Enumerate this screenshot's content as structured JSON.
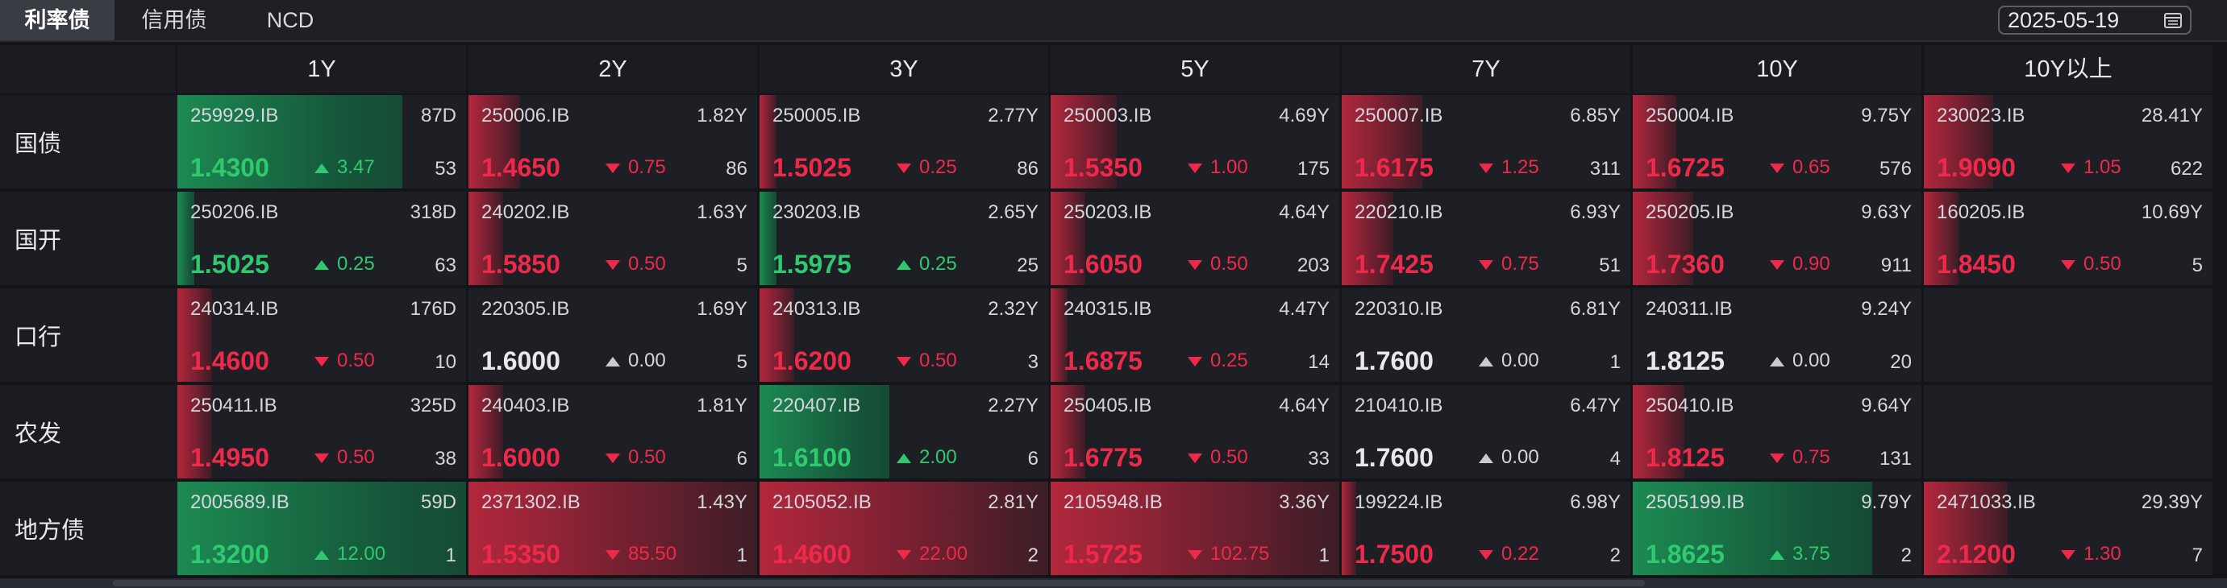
{
  "tabs": [
    {
      "label": "利率债",
      "active": true
    },
    {
      "label": "信用债",
      "active": false
    },
    {
      "label": "NCD",
      "active": false
    }
  ],
  "date": "2025-05-19",
  "columns": [
    "1Y",
    "2Y",
    "3Y",
    "5Y",
    "7Y",
    "10Y",
    "10Y以上"
  ],
  "rows": [
    {
      "label": "国债",
      "cells": [
        {
          "code": "259929.IB",
          "tenor": "87D",
          "yield": "1.4300",
          "chg": "3.47",
          "dir": "up",
          "vol": "53",
          "fill": 0.78
        },
        {
          "code": "250006.IB",
          "tenor": "1.82Y",
          "yield": "1.4650",
          "chg": "0.75",
          "dir": "down",
          "vol": "86",
          "fill": 0.18
        },
        {
          "code": "250005.IB",
          "tenor": "2.77Y",
          "yield": "1.5025",
          "chg": "0.25",
          "dir": "down",
          "vol": "86",
          "fill": 0.06
        },
        {
          "code": "250003.IB",
          "tenor": "4.69Y",
          "yield": "1.5350",
          "chg": "1.00",
          "dir": "down",
          "vol": "175",
          "fill": 0.23
        },
        {
          "code": "250007.IB",
          "tenor": "6.85Y",
          "yield": "1.6175",
          "chg": "1.25",
          "dir": "down",
          "vol": "311",
          "fill": 0.28
        },
        {
          "code": "250004.IB",
          "tenor": "9.75Y",
          "yield": "1.6725",
          "chg": "0.65",
          "dir": "down",
          "vol": "576",
          "fill": 0.15
        },
        {
          "code": "230023.IB",
          "tenor": "28.41Y",
          "yield": "1.9090",
          "chg": "1.05",
          "dir": "down",
          "vol": "622",
          "fill": 0.24
        }
      ]
    },
    {
      "label": "国开",
      "cells": [
        {
          "code": "250206.IB",
          "tenor": "318D",
          "yield": "1.5025",
          "chg": "0.25",
          "dir": "up",
          "vol": "63",
          "fill": 0.06
        },
        {
          "code": "240202.IB",
          "tenor": "1.63Y",
          "yield": "1.5850",
          "chg": "0.50",
          "dir": "down",
          "vol": "5",
          "fill": 0.12
        },
        {
          "code": "230203.IB",
          "tenor": "2.65Y",
          "yield": "1.5975",
          "chg": "0.25",
          "dir": "up",
          "vol": "25",
          "fill": 0.06
        },
        {
          "code": "250203.IB",
          "tenor": "4.64Y",
          "yield": "1.6050",
          "chg": "0.50",
          "dir": "down",
          "vol": "203",
          "fill": 0.12
        },
        {
          "code": "220210.IB",
          "tenor": "6.93Y",
          "yield": "1.7425",
          "chg": "0.75",
          "dir": "down",
          "vol": "51",
          "fill": 0.18
        },
        {
          "code": "250205.IB",
          "tenor": "9.63Y",
          "yield": "1.7360",
          "chg": "0.90",
          "dir": "down",
          "vol": "911",
          "fill": 0.21
        },
        {
          "code": "160205.IB",
          "tenor": "10.69Y",
          "yield": "1.8450",
          "chg": "0.50",
          "dir": "down",
          "vol": "5",
          "fill": 0.12
        }
      ]
    },
    {
      "label": "口行",
      "cells": [
        {
          "code": "240314.IB",
          "tenor": "176D",
          "yield": "1.4600",
          "chg": "0.50",
          "dir": "down",
          "vol": "10",
          "fill": 0.12
        },
        {
          "code": "220305.IB",
          "tenor": "1.69Y",
          "yield": "1.6000",
          "chg": "0.00",
          "dir": "flat",
          "vol": "5",
          "fill": 0
        },
        {
          "code": "240313.IB",
          "tenor": "2.32Y",
          "yield": "1.6200",
          "chg": "0.50",
          "dir": "down",
          "vol": "3",
          "fill": 0.12
        },
        {
          "code": "240315.IB",
          "tenor": "4.47Y",
          "yield": "1.6875",
          "chg": "0.25",
          "dir": "down",
          "vol": "14",
          "fill": 0.06
        },
        {
          "code": "220310.IB",
          "tenor": "6.81Y",
          "yield": "1.7600",
          "chg": "0.00",
          "dir": "flat",
          "vol": "1",
          "fill": 0
        },
        {
          "code": "240311.IB",
          "tenor": "9.24Y",
          "yield": "1.8125",
          "chg": "0.00",
          "dir": "flat",
          "vol": "20",
          "fill": 0
        },
        null
      ]
    },
    {
      "label": "农发",
      "cells": [
        {
          "code": "250411.IB",
          "tenor": "325D",
          "yield": "1.4950",
          "chg": "0.50",
          "dir": "down",
          "vol": "38",
          "fill": 0.12
        },
        {
          "code": "240403.IB",
          "tenor": "1.81Y",
          "yield": "1.6000",
          "chg": "0.50",
          "dir": "down",
          "vol": "6",
          "fill": 0.12
        },
        {
          "code": "220407.IB",
          "tenor": "2.27Y",
          "yield": "1.6100",
          "chg": "2.00",
          "dir": "up",
          "vol": "6",
          "fill": 0.45
        },
        {
          "code": "250405.IB",
          "tenor": "4.64Y",
          "yield": "1.6775",
          "chg": "0.50",
          "dir": "down",
          "vol": "33",
          "fill": 0.12
        },
        {
          "code": "210410.IB",
          "tenor": "6.47Y",
          "yield": "1.7600",
          "chg": "0.00",
          "dir": "flat",
          "vol": "4",
          "fill": 0
        },
        {
          "code": "250410.IB",
          "tenor": "9.64Y",
          "yield": "1.8125",
          "chg": "0.75",
          "dir": "down",
          "vol": "131",
          "fill": 0.18
        },
        null
      ]
    },
    {
      "label": "地方债",
      "cells": [
        {
          "code": "2005689.IB",
          "tenor": "59D",
          "yield": "1.3200",
          "chg": "12.00",
          "dir": "up",
          "vol": "1",
          "fill": 1.0
        },
        {
          "code": "2371302.IB",
          "tenor": "1.43Y",
          "yield": "1.5350",
          "chg": "85.50",
          "dir": "down",
          "vol": "1",
          "fill": 1.0
        },
        {
          "code": "2105052.IB",
          "tenor": "2.81Y",
          "yield": "1.4600",
          "chg": "22.00",
          "dir": "down",
          "vol": "2",
          "fill": 1.0
        },
        {
          "code": "2105948.IB",
          "tenor": "3.36Y",
          "yield": "1.5725",
          "chg": "102.75",
          "dir": "down",
          "vol": "1",
          "fill": 1.0
        },
        {
          "code": "199224.IB",
          "tenor": "6.98Y",
          "yield": "1.7500",
          "chg": "0.22",
          "dir": "down",
          "vol": "2",
          "fill": 0.05
        },
        {
          "code": "2505199.IB",
          "tenor": "9.79Y",
          "yield": "1.8625",
          "chg": "3.75",
          "dir": "up",
          "vol": "2",
          "fill": 0.83
        },
        {
          "code": "2471033.IB",
          "tenor": "29.39Y",
          "yield": "2.1200",
          "chg": "1.30",
          "dir": "down",
          "vol": "7",
          "fill": 0.29
        }
      ]
    }
  ],
  "colors": {
    "up": "#2fc96f",
    "down": "#f0284a",
    "background": "#141519",
    "cell": "#1d1f25"
  }
}
